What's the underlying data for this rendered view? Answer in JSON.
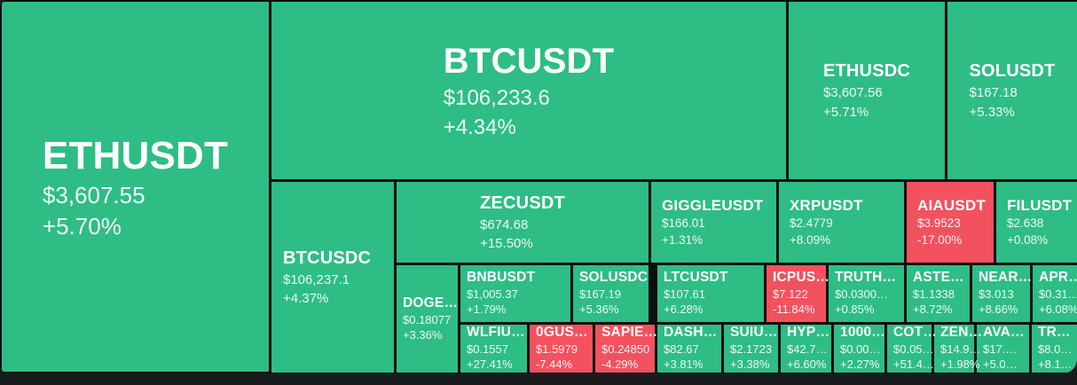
{
  "widget": {
    "name": "crypto-pairs-treemap"
  },
  "colors": {
    "up": "#2ebd85",
    "down": "#f4515f",
    "gap": "#0c0e10",
    "page_bg": "#191b1d",
    "text": "#ffffff"
  },
  "chart_data": {
    "type": "heatmap",
    "subtype": "treemap",
    "legend": "none",
    "value_fields": [
      "symbol",
      "last_price",
      "change_24h_pct"
    ],
    "points": [
      {
        "symbol": "ETHUSDT",
        "price": "$3,607.55",
        "change": "+5.70%",
        "direction": "up"
      },
      {
        "symbol": "BTCUSDT",
        "price": "$106,233.6",
        "change": "+4.34%",
        "direction": "up"
      },
      {
        "symbol": "ETHUSDC",
        "price": "$3,607.56",
        "change": "+5.71%",
        "direction": "up"
      },
      {
        "symbol": "SOLUSDT",
        "price": "$167.18",
        "change": "+5.33%",
        "direction": "up"
      },
      {
        "symbol": "BTCUSDC",
        "price": "$106,237.1",
        "change": "+4.37%",
        "direction": "up"
      },
      {
        "symbol": "ZECUSDT",
        "price": "$674.68",
        "change": "+15.50%",
        "direction": "up"
      },
      {
        "symbol": "GIGGLEUSDT",
        "price": "$166.01",
        "change": "+1.31%",
        "direction": "up"
      },
      {
        "symbol": "XRPUSDT",
        "price": "$2.4779",
        "change": "+8.09%",
        "direction": "up"
      },
      {
        "symbol": "AIAUSDT",
        "price": "$3.9523",
        "change": "-17.00%",
        "direction": "down"
      },
      {
        "symbol": "FILUSDT",
        "price": "$2.638",
        "change": "+0.08%",
        "direction": "up"
      },
      {
        "symbol": "DOGE…",
        "price": "$0.18077",
        "change": "+3.36%",
        "direction": "up"
      },
      {
        "symbol": "BNBUSDT",
        "price": "$1,005.37",
        "change": "+1.79%",
        "direction": "up"
      },
      {
        "symbol": "SOLUSDC",
        "price": "$167.19",
        "change": "+5.36%",
        "direction": "up"
      },
      {
        "symbol": "LTCUSDT",
        "price": "$107.61",
        "change": "+6.28%",
        "direction": "up"
      },
      {
        "symbol": "ICPUS…",
        "price": "$7.122",
        "change": "-11.84%",
        "direction": "down"
      },
      {
        "symbol": "TRUTH…",
        "price": "$0.0300…",
        "change": "+0.85%",
        "direction": "up"
      },
      {
        "symbol": "ASTE…",
        "price": "$1.1338",
        "change": "+8.72%",
        "direction": "up"
      },
      {
        "symbol": "NEAR…",
        "price": "$3.013",
        "change": "+8.66%",
        "direction": "up"
      },
      {
        "symbol": "APR…",
        "price": "$0.31…",
        "change": "+6.08%",
        "direction": "up"
      },
      {
        "symbol": "WLFIU…",
        "price": "$0.1557",
        "change": "+27.41%",
        "direction": "up"
      },
      {
        "symbol": "0GUS…",
        "price": "$1.5979",
        "change": "-7.44%",
        "direction": "down"
      },
      {
        "symbol": "SAPIE…",
        "price": "$0.24850",
        "change": "-4.29%",
        "direction": "down"
      },
      {
        "symbol": "DASH…",
        "price": "$82.67",
        "change": "+3.81%",
        "direction": "up"
      },
      {
        "symbol": "SUIU…",
        "price": "$2.1723",
        "change": "+3.38%",
        "direction": "up"
      },
      {
        "symbol": "HYP…",
        "price": "$42.7…",
        "change": "+6.60%",
        "direction": "up"
      },
      {
        "symbol": "1000…",
        "price": "$0.00…",
        "change": "+2.27%",
        "direction": "up"
      },
      {
        "symbol": "COT…",
        "price": "$0.05…",
        "change": "+51.4…",
        "direction": "up"
      },
      {
        "symbol": "ZEN…",
        "price": "$14.9…",
        "change": "+1.98%",
        "direction": "up"
      },
      {
        "symbol": "AVA…",
        "price": "$17.…",
        "change": "+5.0…",
        "direction": "up"
      },
      {
        "symbol": "TR…",
        "price": "$8.0…",
        "change": "+8.1…",
        "direction": "up"
      }
    ]
  }
}
